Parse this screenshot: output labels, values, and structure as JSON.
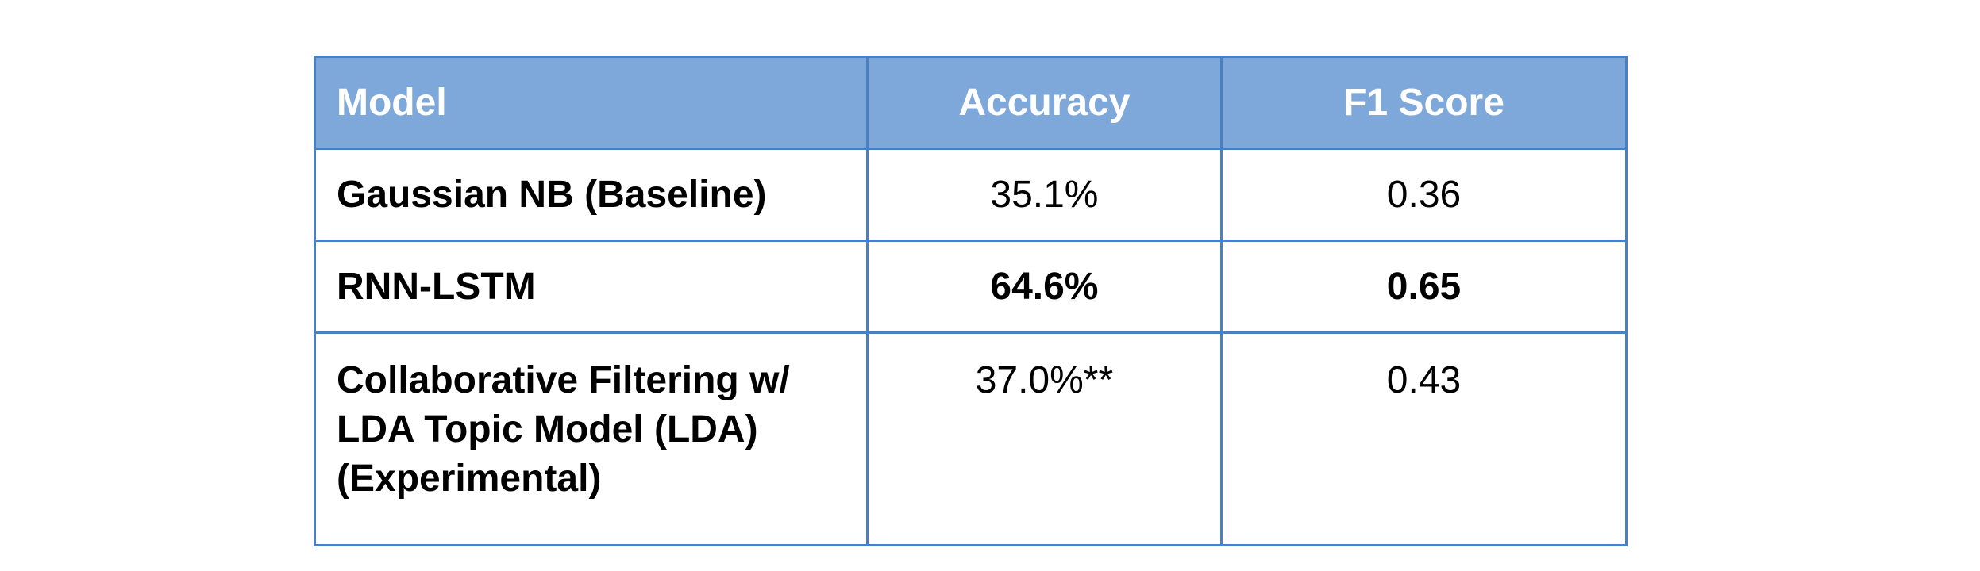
{
  "table": {
    "columns": [
      "Model",
      "Accuracy",
      "F1 Score"
    ],
    "rows": [
      {
        "model": "Gaussian NB (Baseline)",
        "accuracy": "35.1%",
        "f1": "0.36"
      },
      {
        "model": "RNN-LSTM",
        "accuracy": "64.6%",
        "f1": "0.65"
      },
      {
        "model": "Collaborative Filtering w/ LDA Topic Model (LDA) (Experimental)",
        "accuracy": "37.0%**",
        "f1": "0.43"
      }
    ],
    "highlight_color": "#70a558",
    "header_color": "#7ea8d9",
    "border_color": "#4a7fc4"
  }
}
